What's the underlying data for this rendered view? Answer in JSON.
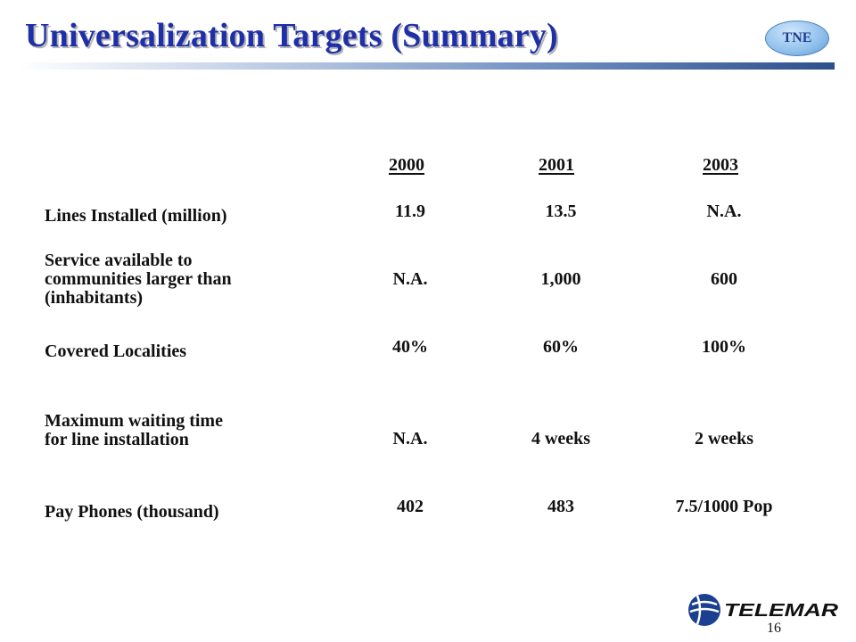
{
  "header": {
    "title": "Universalization Targets (Summary)",
    "badge": "TNE"
  },
  "table": {
    "years": [
      "2000",
      "2001",
      "2003"
    ],
    "rows": [
      {
        "label": "Lines Installed (million)",
        "values": [
          "11.9",
          "13.5",
          "N.A."
        ]
      },
      {
        "label_lines": [
          "Service available to",
          "communities larger than",
          "(inhabitants)"
        ],
        "values": [
          "N.A.",
          "1,000",
          "600"
        ]
      },
      {
        "label": "Covered Localities",
        "values": [
          "40%",
          "60%",
          "100%"
        ]
      },
      {
        "label_lines": [
          "Maximum waiting time",
          "for line installation"
        ],
        "values": [
          "N.A.",
          "4 weeks",
          "2 weeks"
        ]
      },
      {
        "label": "Pay Phones (thousand)",
        "values": [
          "402",
          "483",
          "7.5/1000 Pop"
        ]
      }
    ]
  },
  "footer": {
    "logo_text": "TELEMAR",
    "page_number": "16"
  }
}
